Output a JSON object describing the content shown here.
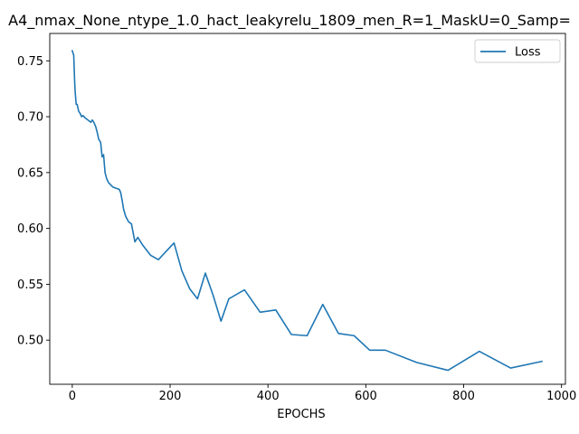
{
  "chart_data": {
    "type": "line",
    "title": "A4_nmax_None_ntype_1.0_hact_leakyrelu_1809_men_R=1_MaskU=0_Samp=",
    "xlabel": "EPOCHS",
    "ylabel": "",
    "xlim": [
      -46,
      1008
    ],
    "ylim": [
      0.4605,
      0.7745
    ],
    "xticks": [
      0,
      200,
      400,
      600,
      800,
      1000
    ],
    "yticks": [
      0.5,
      0.55,
      0.6,
      0.65,
      0.7,
      0.75
    ],
    "xtick_labels": [
      "0",
      "200",
      "400",
      "600",
      "800",
      "1000"
    ],
    "ytick_labels": [
      "0.50",
      "0.55",
      "0.60",
      "0.65",
      "0.70",
      "0.75"
    ],
    "grid": false,
    "legend_position": "top-right",
    "series": [
      {
        "name": "Loss",
        "color": "#1f77b4",
        "x": [
          0,
          3,
          5,
          6,
          8,
          10,
          13,
          16,
          19,
          22,
          26,
          29,
          32,
          35,
          38,
          41,
          44,
          48,
          51,
          54,
          58,
          61,
          64,
          67,
          70,
          74,
          83,
          89,
          96,
          99,
          102,
          105,
          109,
          115,
          121,
          128,
          134,
          144,
          160,
          176,
          208,
          224,
          240,
          256,
          272,
          288,
          304,
          320,
          352,
          384,
          416,
          448,
          480,
          512,
          544,
          576,
          608,
          640,
          704,
          768,
          832,
          896,
          960
        ],
        "y": [
          0.759,
          0.755,
          0.73,
          0.722,
          0.711,
          0.711,
          0.705,
          0.703,
          0.7,
          0.701,
          0.699,
          0.698,
          0.697,
          0.696,
          0.695,
          0.697,
          0.695,
          0.691,
          0.686,
          0.68,
          0.677,
          0.664,
          0.666,
          0.65,
          0.645,
          0.641,
          0.637,
          0.636,
          0.635,
          0.632,
          0.625,
          0.617,
          0.611,
          0.606,
          0.604,
          0.588,
          0.592,
          0.585,
          0.576,
          0.572,
          0.587,
          0.562,
          0.546,
          0.537,
          0.56,
          0.54,
          0.517,
          0.537,
          0.545,
          0.525,
          0.527,
          0.505,
          0.504,
          0.532,
          0.506,
          0.504,
          0.491,
          0.491,
          0.48,
          0.473,
          0.49,
          0.475,
          0.481
        ]
      }
    ]
  }
}
